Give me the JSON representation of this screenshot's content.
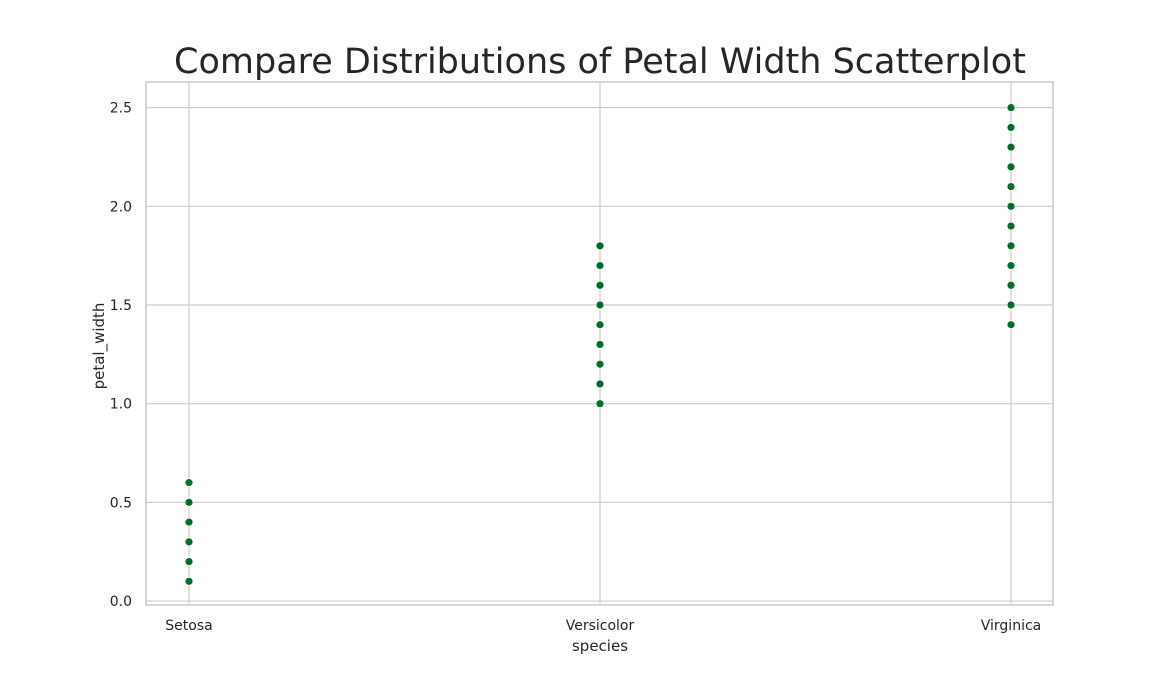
{
  "chart_data": {
    "type": "scatter",
    "title": "Compare Distributions of Petal Width Scatterplot",
    "xlabel": "species",
    "ylabel": "petal_width",
    "categories": [
      "Setosa",
      "Versicolor",
      "Virginica"
    ],
    "ylim": [
      -0.02,
      2.63
    ],
    "yticks": [
      "0.0",
      "0.5",
      "1.0",
      "1.5",
      "2.0",
      "2.5"
    ],
    "grid": true,
    "marker_color": "#006d2c",
    "points": [
      {
        "x": "Setosa",
        "y": [
          0.1,
          0.2,
          0.3,
          0.4,
          0.5,
          0.6
        ]
      },
      {
        "x": "Versicolor",
        "y": [
          1.0,
          1.1,
          1.2,
          1.3,
          1.4,
          1.5,
          1.6,
          1.7,
          1.8
        ]
      },
      {
        "x": "Virginica",
        "y": [
          1.4,
          1.5,
          1.6,
          1.7,
          1.8,
          1.9,
          2.0,
          2.1,
          2.2,
          2.3,
          2.4,
          2.5
        ]
      }
    ]
  }
}
